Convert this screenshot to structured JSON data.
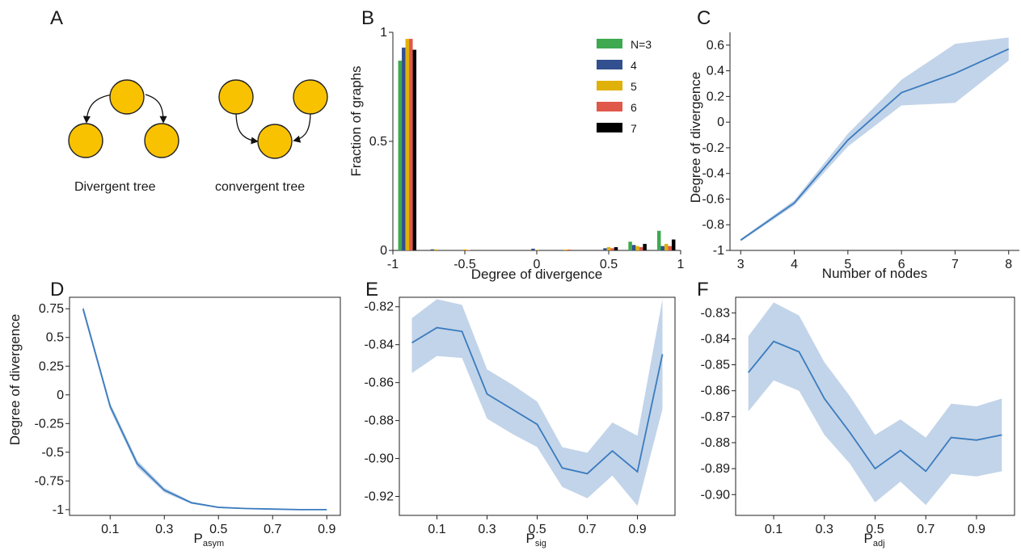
{
  "colors": {
    "line": "#3a7bbf",
    "band": "#adc6e2",
    "node_fill": "#f9c200",
    "node_stroke": "#222222",
    "legend": [
      "#3ea94f",
      "#32508f",
      "#e0b10a",
      "#e0584a",
      "#000000"
    ]
  },
  "panelA": {
    "letter": "A",
    "divergent_label": "Divergent tree",
    "convergent_label": "convergent tree"
  },
  "chart_data": [
    {
      "id": "B",
      "letter": "B",
      "type": "bar",
      "xlabel": "Degree of divergence",
      "ylabel": "Fraction of graphs",
      "xlim": [
        -1,
        1
      ],
      "ylim": [
        0,
        1
      ],
      "xticks": [
        "-1",
        "-0.5",
        "0",
        "0.5",
        "1"
      ],
      "yticks": [
        "0",
        "0.5",
        "1"
      ],
      "x": [
        -0.9,
        -0.7,
        -0.5,
        0.0,
        0.2,
        0.5,
        0.7,
        0.9
      ],
      "legend_position": "top-right",
      "series": [
        {
          "name": "N=3",
          "values": [
            0.87,
            0.0,
            0.0,
            0.0,
            0.0,
            0.0,
            0.04,
            0.09
          ]
        },
        {
          "name": "4",
          "values": [
            0.93,
            0.005,
            0.0,
            0.008,
            0.0,
            0.01,
            0.025,
            0.02
          ]
        },
        {
          "name": "5",
          "values": [
            0.97,
            0.005,
            0.005,
            0.003,
            0.004,
            0.015,
            0.02,
            0.03
          ]
        },
        {
          "name": "6",
          "values": [
            0.97,
            0.0,
            0.002,
            0.0,
            0.004,
            0.01,
            0.015,
            0.02
          ]
        },
        {
          "name": "7",
          "values": [
            0.92,
            0.0,
            0.0,
            0.0,
            0.0,
            0.015,
            0.03,
            0.05
          ]
        }
      ]
    },
    {
      "id": "C",
      "letter": "C",
      "type": "line",
      "xlabel": "Number of nodes",
      "ylabel": "Degree of divergence",
      "xlim": [
        2.8,
        8.2
      ],
      "ylim": [
        -1,
        0.7
      ],
      "xticks": [
        "3",
        "4",
        "5",
        "6",
        "7",
        "8"
      ],
      "yticks": [
        "-1",
        "-0.8",
        "-0.6",
        "-0.4",
        "-0.2",
        "0",
        "0.2",
        "0.4",
        "0.6"
      ],
      "x": [
        3,
        4,
        5,
        6,
        7,
        8
      ],
      "y": [
        -0.92,
        -0.63,
        -0.14,
        0.23,
        0.38,
        0.57
      ],
      "lower": [
        -0.93,
        -0.65,
        -0.19,
        0.13,
        0.15,
        0.48
      ],
      "upper": [
        -0.91,
        -0.61,
        -0.09,
        0.33,
        0.61,
        0.66
      ]
    },
    {
      "id": "D",
      "letter": "D",
      "type": "line",
      "xlabel": "P",
      "xlabel_sub": "asym",
      "ylabel": "Degree of divergence",
      "xlim": [
        -0.05,
        0.95
      ],
      "ylim": [
        -1.05,
        0.85
      ],
      "xticks": [
        "0.1",
        "0.3",
        "0.5",
        "0.7",
        "0.9"
      ],
      "yticks": [
        "0.75",
        "0.5",
        "0.25",
        "0",
        "-0.25",
        "-0.5",
        "-0.75",
        "-1"
      ],
      "x": [
        0.0,
        0.1,
        0.2,
        0.3,
        0.4,
        0.5,
        0.6,
        0.7,
        0.8,
        0.9
      ],
      "y": [
        0.75,
        -0.1,
        -0.6,
        -0.83,
        -0.94,
        -0.98,
        -0.99,
        -0.995,
        -1.0,
        -1.0
      ],
      "lower": [
        0.72,
        -0.13,
        -0.63,
        -0.85,
        -0.95,
        -0.985,
        -0.993,
        -0.998,
        -1.003,
        -1.005
      ],
      "upper": [
        0.78,
        -0.07,
        -0.57,
        -0.81,
        -0.93,
        -0.975,
        -0.987,
        -0.992,
        -0.997,
        -0.995
      ]
    },
    {
      "id": "E",
      "letter": "E",
      "type": "line",
      "xlabel": "P",
      "xlabel_sub": "sig",
      "ylabel": "",
      "xlim": [
        -0.05,
        1.05
      ],
      "ylim": [
        -0.93,
        -0.815
      ],
      "xticks": [
        "0.1",
        "0.3",
        "0.5",
        "0.7",
        "0.9"
      ],
      "yticks": [
        "-0.82",
        "-0.84",
        "-0.86",
        "-0.88",
        "-0.90",
        "-0.92"
      ],
      "x": [
        0.0,
        0.1,
        0.2,
        0.3,
        0.4,
        0.5,
        0.6,
        0.7,
        0.8,
        0.9,
        1.0
      ],
      "y": [
        -0.839,
        -0.831,
        -0.833,
        -0.866,
        -0.874,
        -0.882,
        -0.905,
        -0.908,
        -0.896,
        -0.907,
        -0.845
      ],
      "lower": [
        -0.855,
        -0.846,
        -0.847,
        -0.879,
        -0.887,
        -0.894,
        -0.915,
        -0.921,
        -0.909,
        -0.925,
        -0.874
      ],
      "upper": [
        -0.826,
        -0.816,
        -0.819,
        -0.853,
        -0.861,
        -0.87,
        -0.894,
        -0.897,
        -0.881,
        -0.888,
        -0.816
      ]
    },
    {
      "id": "F",
      "letter": "F",
      "type": "line",
      "xlabel": "P",
      "xlabel_sub": "adj",
      "ylabel": "",
      "xlim": [
        -0.05,
        1.05
      ],
      "ylim": [
        -0.908,
        -0.824
      ],
      "xticks": [
        "0.1",
        "0.3",
        "0.5",
        "0.7",
        "0.9"
      ],
      "yticks": [
        "-0.83",
        "-0.84",
        "-0.85",
        "-0.86",
        "-0.87",
        "-0.88",
        "-0.89",
        "-0.90"
      ],
      "x": [
        0.0,
        0.1,
        0.2,
        0.3,
        0.4,
        0.5,
        0.6,
        0.7,
        0.8,
        0.9,
        1.0
      ],
      "y": [
        -0.853,
        -0.841,
        -0.845,
        -0.863,
        -0.876,
        -0.89,
        -0.883,
        -0.891,
        -0.878,
        -0.879,
        -0.877
      ],
      "lower": [
        -0.868,
        -0.856,
        -0.86,
        -0.877,
        -0.888,
        -0.903,
        -0.895,
        -0.904,
        -0.892,
        -0.893,
        -0.891
      ],
      "upper": [
        -0.839,
        -0.826,
        -0.831,
        -0.849,
        -0.862,
        -0.877,
        -0.871,
        -0.878,
        -0.865,
        -0.866,
        -0.863
      ]
    }
  ]
}
